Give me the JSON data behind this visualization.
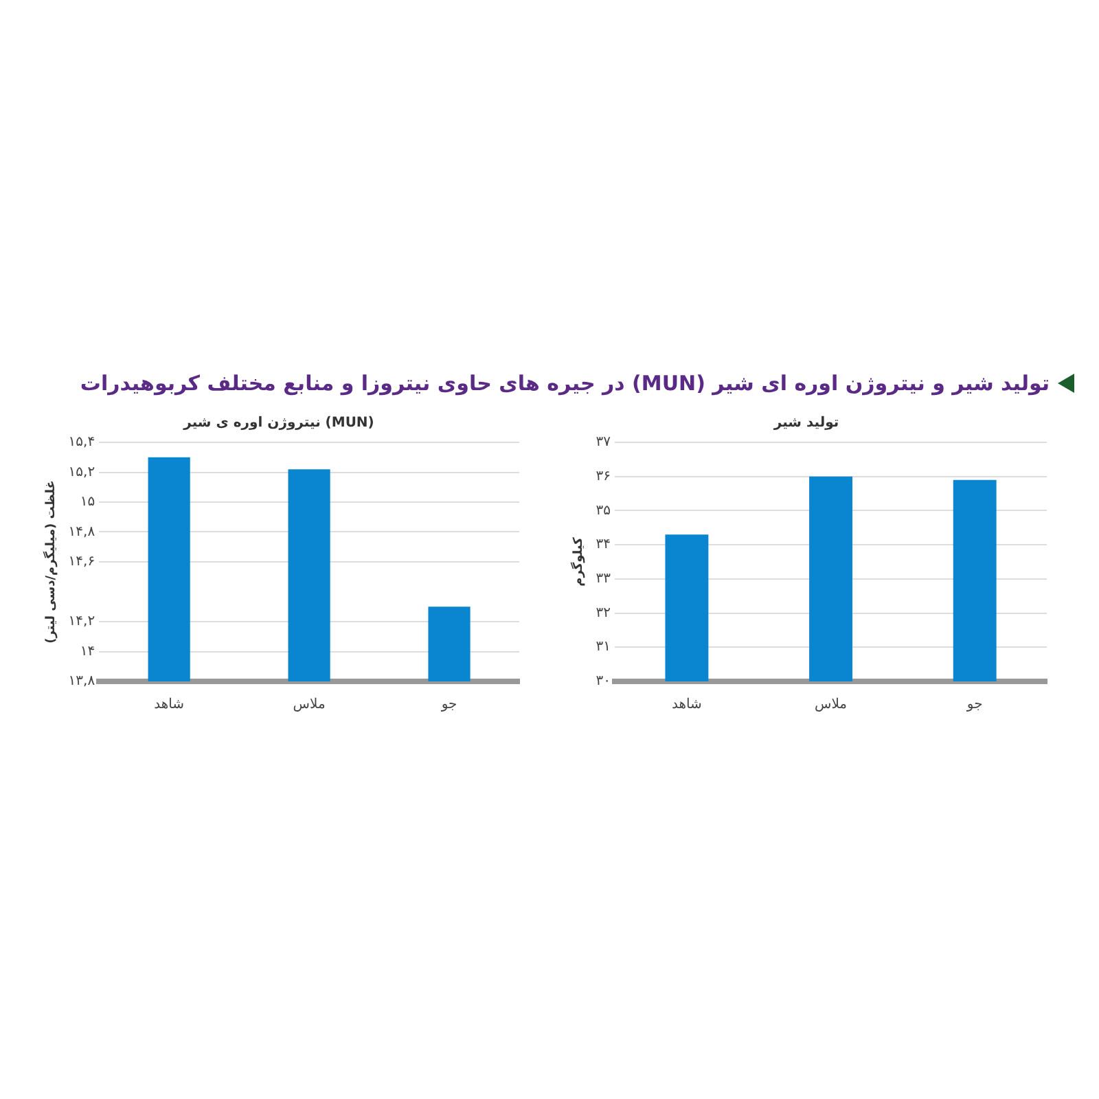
{
  "chart_data": [
    {
      "type": "bar",
      "title": "تولید شیر",
      "ylabel": "کیلوگرم",
      "annotations": [
        "تولید شیر و نیتروژن اوره ای شیر (MUN) در جیره های حاوی نیتروزا و منابع مختلف کربوهیدرات"
      ],
      "categories": [
        "شاهد",
        "ملاس",
        "جو"
      ],
      "values": [
        34.3,
        36.0,
        35.9
      ],
      "color": "#0a86d0",
      "ylim": [
        30,
        37
      ],
      "yticks": [
        {
          "value": 30,
          "label": "۳۰"
        },
        {
          "value": 31,
          "label": "۳۱"
        },
        {
          "value": 32,
          "label": "۳۲"
        },
        {
          "value": 33,
          "label": "۳۳"
        },
        {
          "value": 34,
          "label": "۳۴"
        },
        {
          "value": 35,
          "label": "۳۵"
        },
        {
          "value": 36,
          "label": "۳۶"
        },
        {
          "value": 37,
          "label": "۳۷"
        }
      ],
      "grid": "y",
      "legend": false
    },
    {
      "type": "bar",
      "title": "نیتروژن اوره ی شیر (MUN)",
      "ylabel": "غلظت (میلیگرم/دسی لیتر)",
      "categories": [
        "شاهد",
        "ملاس",
        "جو"
      ],
      "values": [
        15.3,
        15.22,
        14.3
      ],
      "color": "#0a86d0",
      "ylim": [
        13.8,
        15.4
      ],
      "yticks": [
        {
          "value": 13.8,
          "label": "۱۳,۸"
        },
        {
          "value": 14,
          "label": "۱۴"
        },
        {
          "value": 14.2,
          "label": "۱۴,۲"
        },
        {
          "value": 14.6,
          "label": "۱۴,۶"
        },
        {
          "value": 14.8,
          "label": "۱۴,۸"
        },
        {
          "value": 15,
          "label": "۱۵"
        },
        {
          "value": 15.2,
          "label": "۱۵,۲"
        },
        {
          "value": 15.4,
          "label": "۱۵,۴"
        }
      ],
      "grid": "y",
      "legend": false
    }
  ]
}
